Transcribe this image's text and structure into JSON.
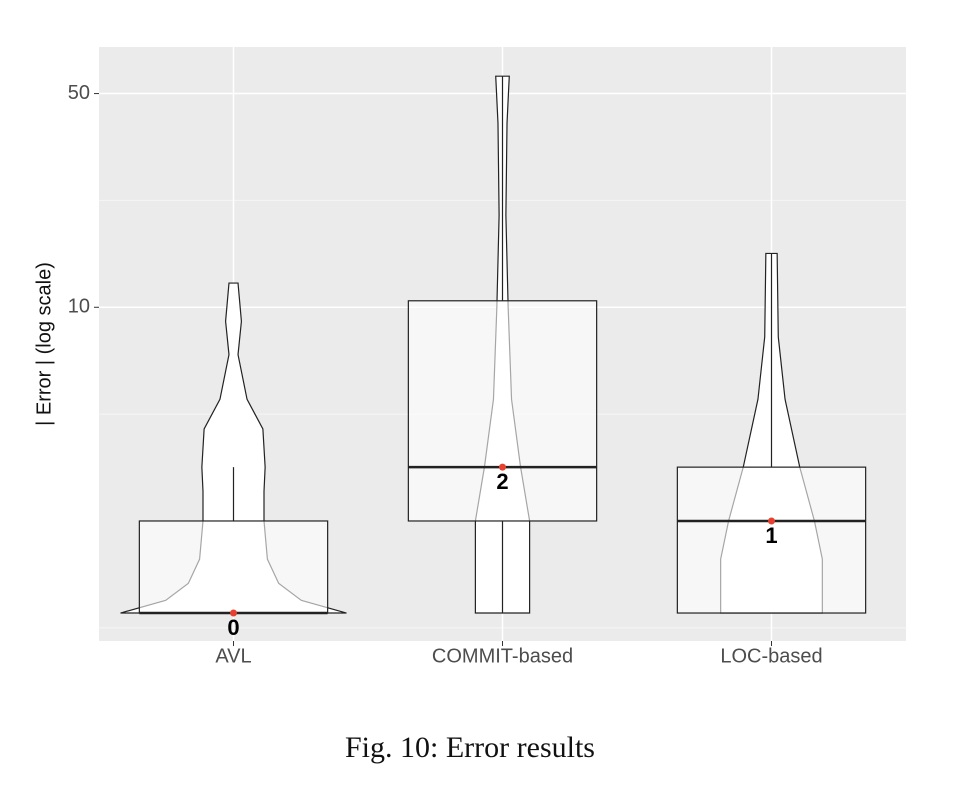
{
  "chart_data": {
    "type": "violin-box",
    "ylabel": "| Error | (log scale)",
    "caption": "Fig. 10: Error results",
    "categories": [
      "AVL",
      "COMMIT-based",
      "LOC-based"
    ],
    "ylog": true,
    "grid": true,
    "ylim": [
      0.81,
      71
    ],
    "yticks": [
      10,
      50
    ],
    "box": {
      "min": [
        1,
        1,
        1
      ],
      "q1": [
        1,
        2,
        1
      ],
      "median": [
        1,
        3,
        2
      ],
      "q3": [
        2,
        10.5,
        3
      ],
      "max": [
        3,
        57,
        15
      ]
    },
    "violins": [
      {
        "y": [
          1,
          1.1,
          1.25,
          1.5,
          2,
          2.5,
          3,
          4,
          5,
          7,
          9,
          12
        ],
        "width": [
          1,
          0.6,
          0.4,
          0.3,
          0.27,
          0.27,
          0.28,
          0.26,
          0.12,
          0.04,
          0.07,
          0.04
        ]
      },
      {
        "y": [
          1,
          2,
          3,
          5,
          10,
          20,
          40,
          57
        ],
        "width": [
          0.24,
          0.24,
          0.16,
          0.08,
          0.05,
          0.03,
          0.04,
          0.06
        ]
      },
      {
        "y": [
          1,
          1.5,
          2,
          3,
          5,
          8,
          15
        ],
        "width": [
          0.45,
          0.45,
          0.38,
          0.25,
          0.12,
          0.06,
          0.05
        ]
      }
    ],
    "median_color": "#e8402f",
    "annotations": [
      "0",
      "2",
      "1"
    ]
  }
}
